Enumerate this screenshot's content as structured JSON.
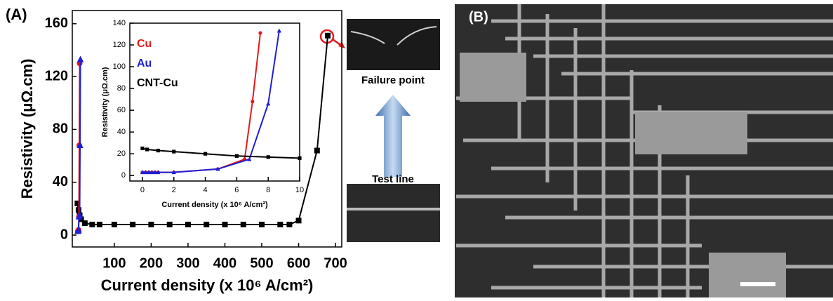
{
  "chart_data": [
    {
      "type": "line",
      "xlabel": "Current density (x 10⁶ A/cm²)",
      "ylabel": "Resistivity (μΩ.cm)",
      "xlim": [
        -14,
        717
      ],
      "ylim": [
        -9,
        170
      ],
      "xticks": [
        100,
        200,
        300,
        400,
        500,
        600,
        700
      ],
      "yticks": [
        0,
        40,
        80,
        120,
        160
      ],
      "series": [
        {
          "name": "CNT-Cu",
          "color": "#000000",
          "marker": "square",
          "x": [
            0,
            3,
            6,
            10,
            20,
            40,
            60,
            100,
            150,
            200,
            250,
            300,
            350,
            400,
            450,
            500,
            550,
            575,
            600,
            650,
            679
          ],
          "values": [
            24,
            19,
            15,
            12,
            9,
            8,
            8,
            8,
            8,
            8,
            8,
            8,
            8,
            8,
            8,
            8,
            8,
            8,
            11,
            64,
            151
          ]
        },
        {
          "name": "Cu",
          "color": "#e31a1c",
          "marker": "circle",
          "x": [
            1,
            2,
            3,
            4,
            5,
            6
          ],
          "values": [
            3,
            3,
            4,
            14,
            68,
            130
          ]
        },
        {
          "name": "Au",
          "color": "#1f1fd6",
          "marker": "triangle",
          "x": [
            1,
            2,
            3,
            4,
            6,
            7,
            8
          ],
          "values": [
            3,
            3,
            4,
            14,
            15,
            68,
            133
          ]
        }
      ]
    },
    {
      "type": "line",
      "xlabel": "Current density (x 10⁶ A/cm²)",
      "ylabel": "Resistivity (μΩ.cm)",
      "xlim": [
        -0.8,
        10
      ],
      "ylim": [
        -5,
        140
      ],
      "xticks": [
        0,
        2,
        4,
        6,
        8,
        10
      ],
      "yticks": [
        0,
        20,
        40,
        60,
        80,
        100,
        120,
        140
      ],
      "series": [
        {
          "name": "Cu",
          "color": "#e31a1c",
          "marker": "circle",
          "x": [
            0,
            0.2,
            0.4,
            0.6,
            0.8,
            1,
            2,
            4.8,
            6.5,
            7,
            7.5
          ],
          "values": [
            3,
            3,
            3,
            3,
            3,
            3,
            3,
            6,
            15,
            68,
            131
          ]
        },
        {
          "name": "Au",
          "color": "#1f1fd6",
          "marker": "triangle",
          "x": [
            0,
            0.2,
            0.4,
            0.6,
            0.8,
            1,
            2,
            4.8,
            6.8,
            8,
            8.7
          ],
          "values": [
            3,
            3,
            3,
            3,
            3,
            3,
            3,
            6,
            15,
            66,
            133
          ]
        },
        {
          "name": "CNT-Cu",
          "color": "#000000",
          "marker": "square",
          "x": [
            0,
            0.3,
            1,
            2,
            4,
            6,
            8,
            10
          ],
          "values": [
            25,
            24,
            23,
            22,
            20,
            18,
            17,
            16
          ]
        }
      ]
    }
  ],
  "panels": {
    "a_label": "(A)",
    "b_label": "(B)",
    "failure_label": "Failure point",
    "test_label": "Test line"
  }
}
